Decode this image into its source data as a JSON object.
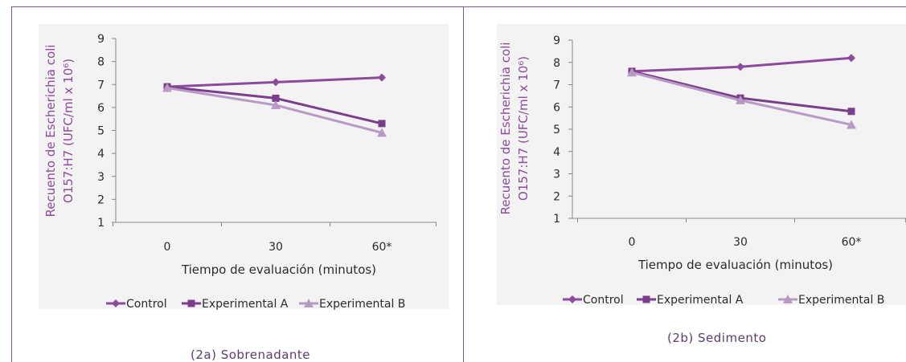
{
  "colors": {
    "frame": "#7b5a8a",
    "plot_bg": "#f3f3f3",
    "control": "#8b4a9c",
    "experimental_a": "#7a3e8c",
    "experimental_b": "#b89ac6",
    "text": "#5a3d6b"
  },
  "captions": {
    "left": "(2a) Sobrenadante",
    "right": "(2b) Sedimento"
  },
  "chart_data": [
    {
      "type": "line",
      "xlabel": "Tiempo de evaluación (minutos)",
      "ylabel_line1": "Recuento de Escherichia coli",
      "ylabel_line2": "O157:H7 (UFC/ml x 10⁶)",
      "categories": [
        "0",
        "30",
        "60*"
      ],
      "ylim": [
        1,
        9
      ],
      "yticks": [
        "1",
        "2",
        "3",
        "4",
        "5",
        "6",
        "7",
        "8",
        "9"
      ],
      "legend_position": "bottom",
      "series": [
        {
          "name": "Control",
          "values": [
            6.9,
            7.1,
            7.3
          ]
        },
        {
          "name": "Experimental A",
          "values": [
            6.9,
            6.4,
            5.3
          ]
        },
        {
          "name": "Experimental B",
          "values": [
            6.85,
            6.1,
            4.9
          ]
        }
      ]
    },
    {
      "type": "line",
      "xlabel": "Tiempo de evaluación (minutos)",
      "ylabel_line1": "Recuento de Escherichia coli",
      "ylabel_line2": "O157:H7 (UFC/ml x 10⁶)",
      "categories": [
        "0",
        "30",
        "60*"
      ],
      "ylim": [
        1,
        9
      ],
      "yticks": [
        "1",
        "2",
        "3",
        "4",
        "5",
        "6",
        "7",
        "8",
        "9"
      ],
      "legend_position": "bottom",
      "series": [
        {
          "name": "Control",
          "values": [
            7.6,
            7.8,
            8.2
          ]
        },
        {
          "name": "Experimental A",
          "values": [
            7.6,
            6.4,
            5.8
          ]
        },
        {
          "name": "Experimental B",
          "values": [
            7.55,
            6.3,
            5.2
          ]
        }
      ]
    }
  ]
}
